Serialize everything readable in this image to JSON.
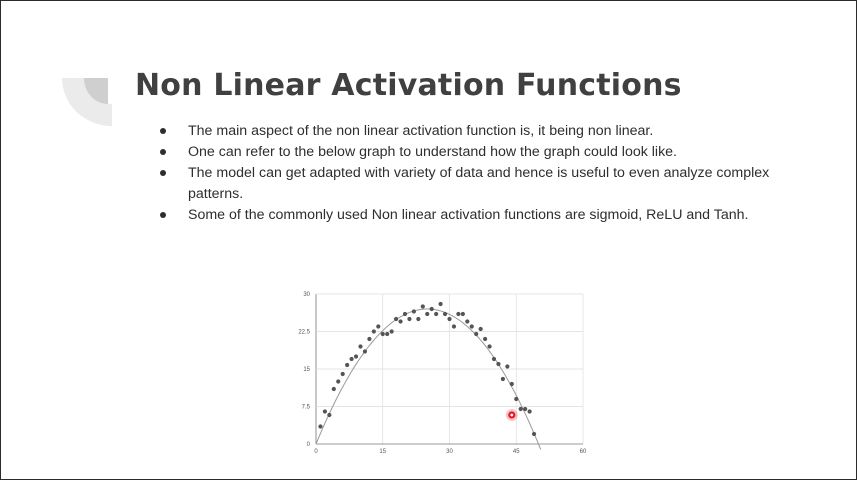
{
  "title": "Non Linear Activation Functions",
  "bullets": [
    "The main aspect of the non linear activation function is, it being non linear.",
    "One can refer to the below graph to understand how the graph could look like.",
    "The model can get adapted with variety of data and hence is useful to even analyze complex patterns.",
    "Some of the commonly used Non linear activation functions are sigmoid, ReLU and Tanh."
  ],
  "colors": {
    "title": "#404040",
    "text": "#2e2e2e",
    "deco_dark": "#cfcfcf",
    "deco_light": "#ebebeb",
    "points": "#555555",
    "curve": "#9a9a9a",
    "cursor": "#e01b24"
  },
  "chart_data": {
    "type": "scatter",
    "x_ticks": [
      "0",
      "15",
      "30",
      "45",
      "60"
    ],
    "y_ticks": [
      "0",
      "7.5",
      "15",
      "22.5",
      "30"
    ],
    "xlim": [
      0,
      60
    ],
    "ylim": [
      0,
      30
    ],
    "grid": true,
    "points": [
      [
        1,
        3.5
      ],
      [
        2,
        6.5
      ],
      [
        3,
        5.8
      ],
      [
        4,
        11
      ],
      [
        5,
        12.5
      ],
      [
        6,
        14
      ],
      [
        7,
        15.8
      ],
      [
        8,
        17
      ],
      [
        9,
        17.5
      ],
      [
        10,
        19.5
      ],
      [
        11,
        18.5
      ],
      [
        12,
        21
      ],
      [
        13,
        22.5
      ],
      [
        14,
        23.5
      ],
      [
        15,
        22
      ],
      [
        16,
        22
      ],
      [
        17,
        22.5
      ],
      [
        18,
        25
      ],
      [
        19,
        24.5
      ],
      [
        20,
        26
      ],
      [
        21,
        25
      ],
      [
        22,
        26.5
      ],
      [
        23,
        25
      ],
      [
        24,
        27.5
      ],
      [
        25,
        26
      ],
      [
        26,
        27
      ],
      [
        27,
        26
      ],
      [
        28,
        28
      ],
      [
        29,
        26
      ],
      [
        30,
        25
      ],
      [
        31,
        23.5
      ],
      [
        32,
        26
      ],
      [
        33,
        26
      ],
      [
        34,
        24.5
      ],
      [
        35,
        23.5
      ],
      [
        36,
        22
      ],
      [
        37,
        23
      ],
      [
        38,
        21
      ],
      [
        39,
        19.5
      ],
      [
        40,
        17
      ],
      [
        41,
        16
      ],
      [
        42,
        13
      ],
      [
        43,
        15.5
      ],
      [
        44,
        12
      ],
      [
        45,
        9
      ],
      [
        46,
        7
      ],
      [
        47,
        7
      ],
      [
        48,
        6.5
      ],
      [
        49,
        2
      ]
    ],
    "curve": {
      "description": "fitted quadratic trend",
      "vertex_x": 25,
      "peak": 27,
      "roots": [
        0,
        50
      ]
    },
    "cursor_point": [
      44,
      5.8
    ]
  }
}
